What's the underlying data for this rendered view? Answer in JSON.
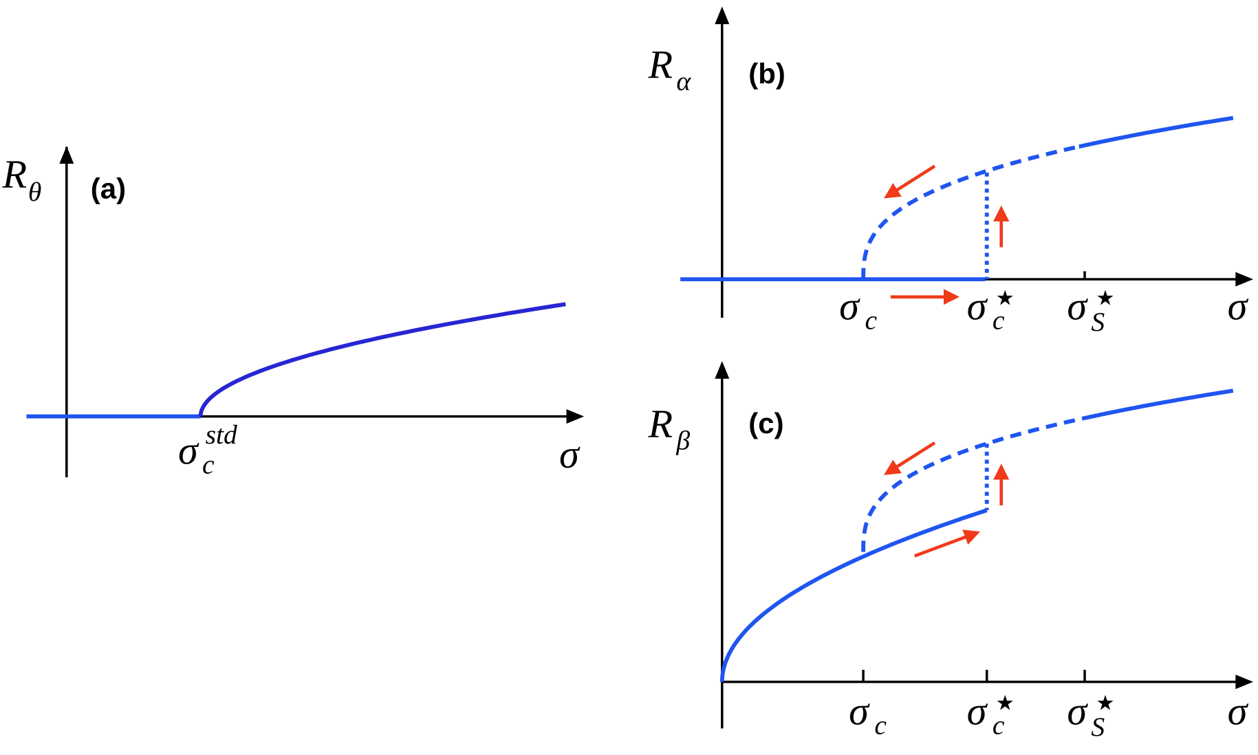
{
  "panels": [
    {
      "label": "(a)",
      "y_axis": {
        "base": "R",
        "sub": "θ"
      },
      "x_axis": "σ",
      "ticks": [
        {
          "base": "σ",
          "sub": "c",
          "sup": "std"
        }
      ]
    },
    {
      "label": "(b)",
      "y_axis": {
        "base": "R",
        "sub": "α"
      },
      "x_axis": "σ",
      "ticks": [
        {
          "base": "σ",
          "sub": "c"
        },
        {
          "base": "σ",
          "sub": "c",
          "sup": "★"
        },
        {
          "base": "σ",
          "sub": "S",
          "sup": "★"
        }
      ]
    },
    {
      "label": "(c)",
      "y_axis": {
        "base": "R",
        "sub": "β"
      },
      "x_axis": "σ",
      "ticks": [
        {
          "base": "σ",
          "sub": "c"
        },
        {
          "base": "σ",
          "sub": "c",
          "sup": "★"
        },
        {
          "base": "σ",
          "sub": "S",
          "sup": "★"
        }
      ]
    }
  ]
}
